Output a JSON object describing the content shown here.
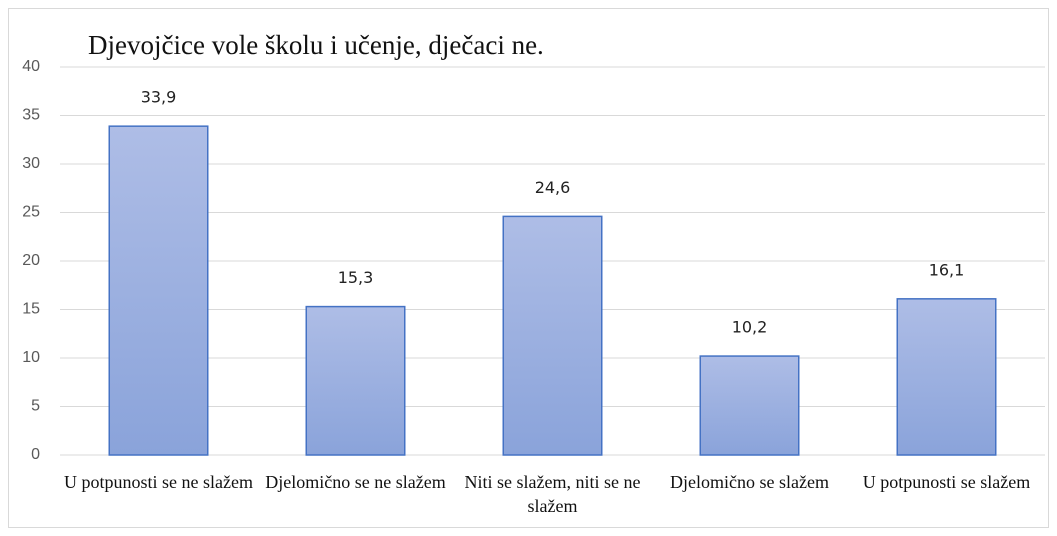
{
  "chart_data": {
    "type": "bar",
    "title": "Djevojčice vole školu i učenje, dječaci ne.",
    "categories": [
      "U potpunosti se ne slažem",
      "Djelomično se ne slažem",
      "Niti se slažem, niti se ne slažem",
      "Djelomično se slažem",
      "U potpunosti se slažem"
    ],
    "values": [
      33.9,
      15.3,
      24.6,
      10.2,
      16.1
    ],
    "value_labels": [
      "33,9",
      "15,3",
      "24,6",
      "10,2",
      "16,1"
    ],
    "color": "#4472c4",
    "ylim": [
      0,
      40
    ],
    "yticks": [
      0,
      5,
      10,
      15,
      20,
      25,
      30,
      35,
      40
    ],
    "grid": true
  }
}
